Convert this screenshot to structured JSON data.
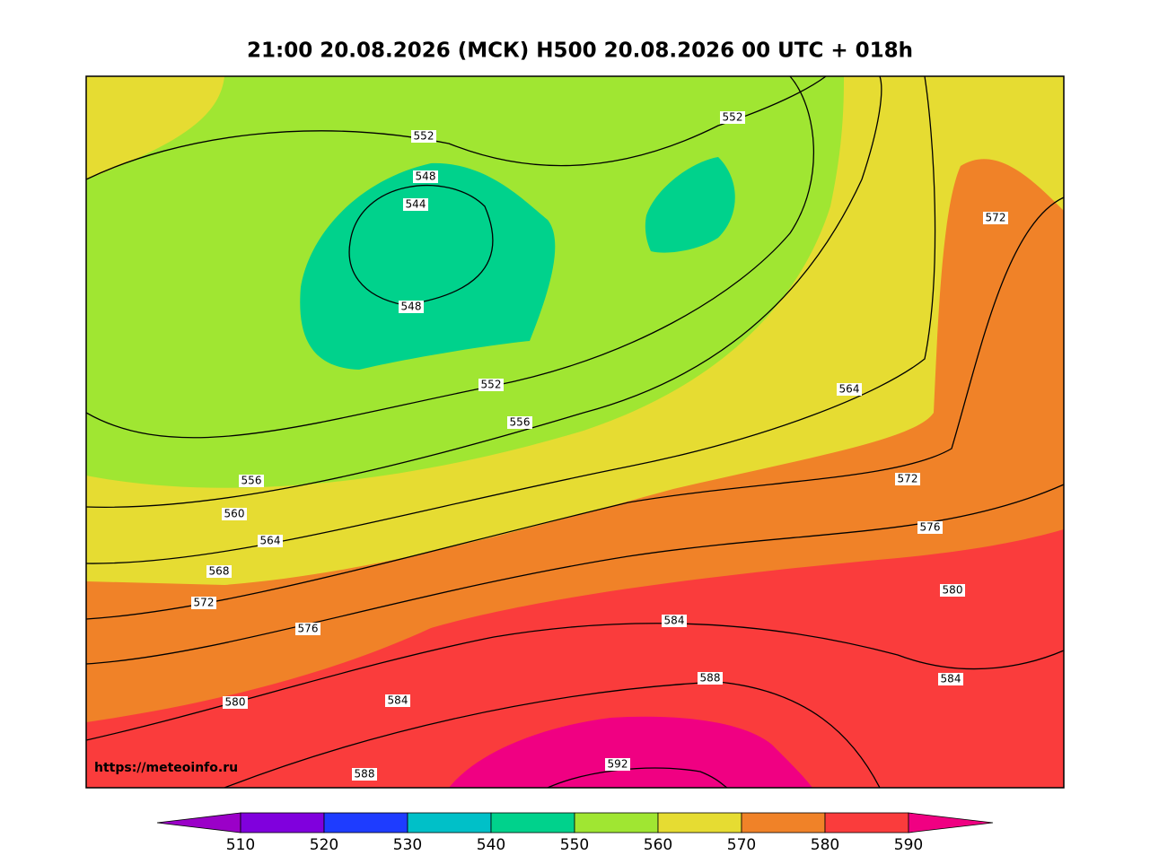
{
  "header": {
    "title": "21:00 20.08.2026 (МСК) H500  20.08.2026 00 UTC + 018h"
  },
  "map": {
    "watermark": "https://meteoinfo.ru",
    "contour_labels": [
      552,
      548,
      544,
      548,
      552,
      556,
      552,
      572,
      564,
      572,
      576,
      580,
      584,
      588,
      584,
      556,
      560,
      564,
      568,
      572,
      576,
      580,
      584,
      588,
      592
    ]
  },
  "colorbar": {
    "ticks": [
      510,
      520,
      530,
      540,
      550,
      560,
      570,
      580,
      590
    ],
    "colors": [
      "#9b00c8",
      "#8000dd",
      "#1e3cff",
      "#00c0c8",
      "#00d28c",
      "#a0e632",
      "#e6dc32",
      "#f08228",
      "#fa3c3c",
      "#f00082"
    ]
  }
}
